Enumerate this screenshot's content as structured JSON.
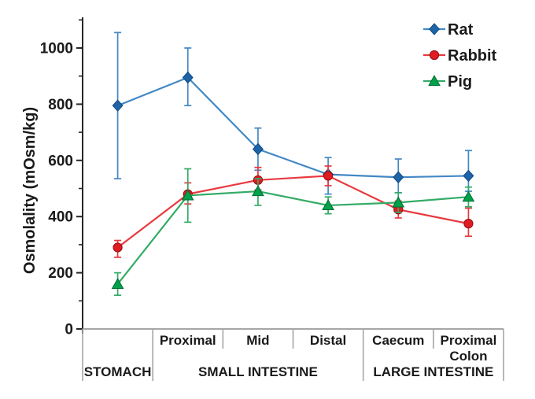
{
  "chart_data": {
    "type": "line",
    "title": "",
    "ylabel": "Osmolality  (mOsm/kg)",
    "ylim": [
      0,
      1100
    ],
    "yticks_major": [
      0,
      200,
      400,
      600,
      800,
      1000
    ],
    "yticks_minor": [
      100,
      300,
      500,
      700,
      900,
      1100
    ],
    "grid": false,
    "legend_position": "top-right",
    "legend": [
      "Rat",
      "Rabbit",
      "Pig"
    ],
    "categories": [
      "Stomach",
      "Proximal small intestine",
      "Mid small intestine",
      "Distal small intestine",
      "Caecum",
      "Proximal colon"
    ],
    "x_axis_table": {
      "segment_labels": [
        "",
        "Proximal",
        "Mid",
        "Distal",
        "Caecum",
        "Proximal\nColon"
      ],
      "group_labels": [
        {
          "label": "STOMACH",
          "start": 0,
          "end": 1
        },
        {
          "label": "SMALL INTESTINE",
          "start": 1,
          "end": 4
        },
        {
          "label": "LARGE INTESTINE",
          "start": 4,
          "end": 6
        }
      ]
    },
    "series": [
      {
        "name": "Rat",
        "marker": "diamond",
        "color": "#1f63a8",
        "line_color": "#4288c5",
        "values": [
          795,
          895,
          640,
          550,
          540,
          545
        ],
        "err_low": [
          535,
          795,
          565,
          480,
          485,
          490
        ],
        "err_high": [
          1055,
          1000,
          715,
          610,
          605,
          635
        ]
      },
      {
        "name": "Rabbit",
        "marker": "circle",
        "color": "#e11b22",
        "line_color": "#e8393f",
        "values": [
          290,
          480,
          530,
          545,
          425,
          375
        ],
        "err_low": [
          255,
          445,
          495,
          510,
          395,
          330
        ],
        "err_high": [
          315,
          520,
          575,
          580,
          455,
          430
        ]
      },
      {
        "name": "Pig",
        "marker": "triangle",
        "color": "#00a14b",
        "line_color": "#33ab66",
        "values": [
          160,
          475,
          490,
          440,
          450,
          470
        ],
        "err_low": [
          120,
          380,
          440,
          410,
          415,
          435
        ],
        "err_high": [
          200,
          570,
          535,
          470,
          485,
          505
        ]
      }
    ],
    "colors": {
      "axis_line": "#262626",
      "table_border": "#a6a6a6",
      "text": "#1a1a1a",
      "marker_strokes": [
        "#0d4a80",
        "#8f0d12",
        "#006b33"
      ]
    }
  }
}
